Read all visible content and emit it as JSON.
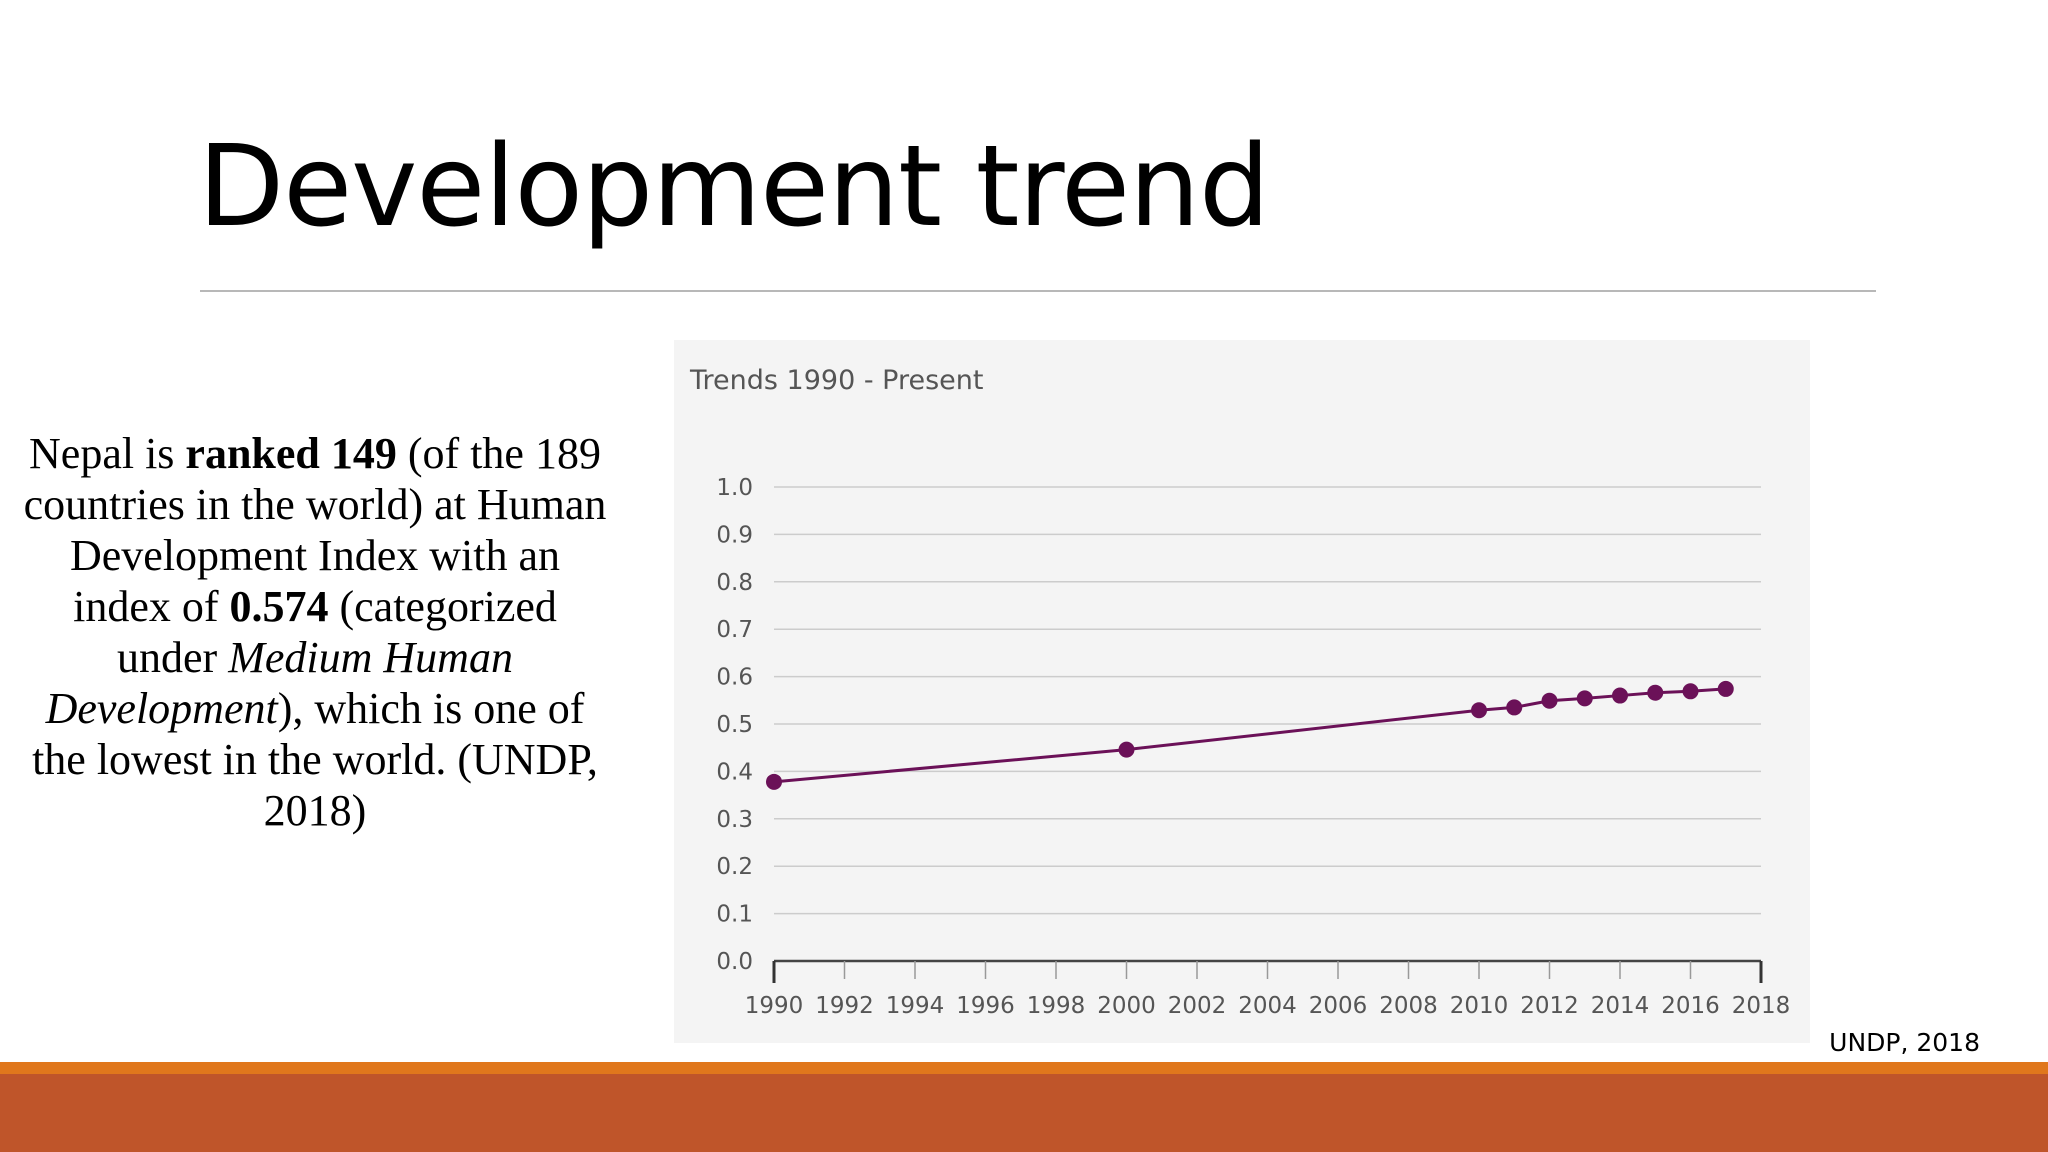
{
  "slide": {
    "title": "Development trend",
    "source_note": "UNDP, 2018"
  },
  "body": {
    "t1": "Nepal is ",
    "t2": "ranked 149",
    "t3": " (of the 189 countries in the world) at Human Development Index with an index of ",
    "t4": "0.574",
    "t5": " (categorized under ",
    "t6": "Medium Human Development",
    "t7": "), which is one of the lowest in the world. (UNDP, 2018)"
  },
  "colors": {
    "series": "#6b1158",
    "grid": "#cccccc",
    "panel": "#f4f4f4",
    "accent_orange": "#e0771c",
    "accent_rust": "#bf552a"
  },
  "chart_data": {
    "type": "line",
    "title": "Trends 1990 - Present",
    "xlabel": "",
    "ylabel": "",
    "xlim": [
      1990,
      2018
    ],
    "ylim": [
      0.0,
      1.0
    ],
    "x_ticks": [
      1990,
      1992,
      1994,
      1996,
      1998,
      2000,
      2002,
      2004,
      2006,
      2008,
      2010,
      2012,
      2014,
      2016,
      2018
    ],
    "y_ticks": [
      "0.0",
      "0.1",
      "0.2",
      "0.3",
      "0.4",
      "0.5",
      "0.6",
      "0.7",
      "0.8",
      "0.9",
      "1.0"
    ],
    "grid": true,
    "series": [
      {
        "name": "HDI",
        "x": [
          1990,
          2000,
          2010,
          2011,
          2012,
          2013,
          2014,
          2015,
          2016,
          2017
        ],
        "y": [
          0.378,
          0.446,
          0.529,
          0.535,
          0.549,
          0.554,
          0.56,
          0.566,
          0.569,
          0.574
        ]
      }
    ]
  }
}
